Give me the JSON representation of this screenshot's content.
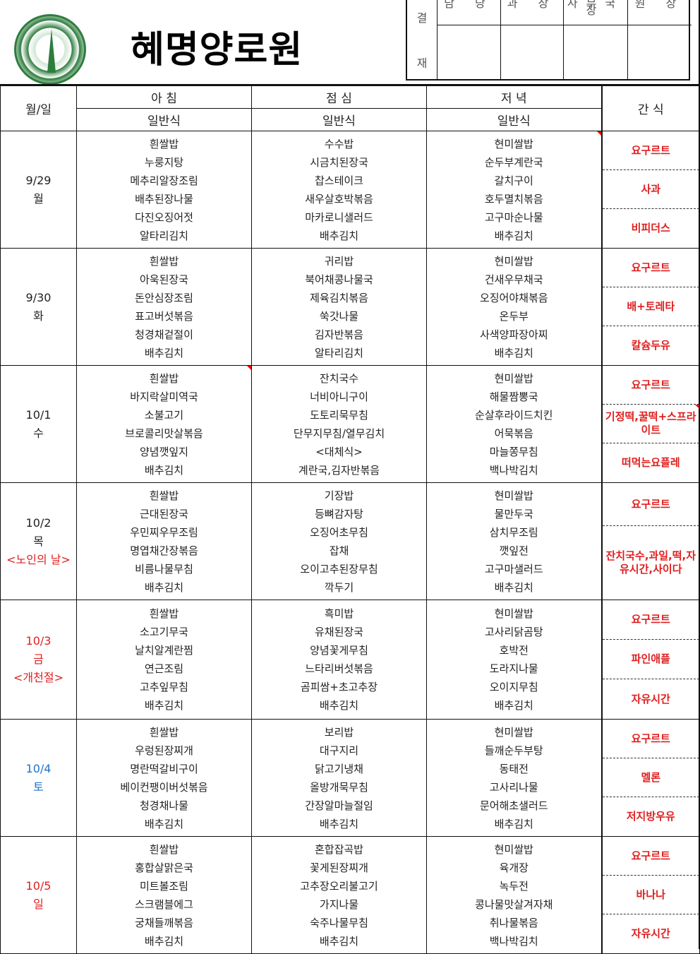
{
  "header": {
    "org_name": "혜명양로원",
    "logo": "hyemyeong-emblem",
    "approval": {
      "label_top": "결",
      "label_bottom": "재",
      "roles": [
        "담 당",
        "과 장",
        "사무국장",
        "원 장"
      ]
    }
  },
  "table": {
    "date_header": "월/일",
    "breakfast": "아 침",
    "lunch": "점 심",
    "dinner": "저 녁",
    "snack": "간 식",
    "general": "일반식"
  },
  "colors": {
    "holiday": "#e02020",
    "saturday": "#1f73c8",
    "snack": "#e02020"
  },
  "days": [
    {
      "date": "9/29",
      "weekday": "월",
      "note": "",
      "color": "normal",
      "breakfast": [
        "흰쌀밥",
        "누룽지탕",
        "메추리알장조림",
        "배추된장나물",
        "다진오징어젓",
        "알타리김치"
      ],
      "lunch": [
        "수수밥",
        "시금치된장국",
        "찹스테이크",
        "새우살호박볶음",
        "마카로니샐러드",
        "배추김치"
      ],
      "dinner": [
        "현미쌀밥",
        "순두부계란국",
        "갈치구이",
        "호두멸치볶음",
        "고구마순나물",
        "배추김치"
      ],
      "snacks": [
        "요구르트",
        "사과",
        "비피더스"
      ]
    },
    {
      "date": "9/30",
      "weekday": "화",
      "note": "",
      "color": "normal",
      "breakfast": [
        "흰쌀밥",
        "아욱된장국",
        "돈안심장조림",
        "표고버섯볶음",
        "청경채겉절이",
        "배추김치"
      ],
      "lunch": [
        "귀리밥",
        "북어채콩나물국",
        "제육김치볶음",
        "쑥갓나물",
        "김자반볶음",
        "알타리김치"
      ],
      "dinner": [
        "현미쌀밥",
        "건새우무채국",
        "오징어야채볶음",
        "온두부",
        "사색양파장아찌",
        "배추김치"
      ],
      "snacks": [
        "요구르트",
        "배+토레타",
        "칼슘두유"
      ]
    },
    {
      "date": "10/1",
      "weekday": "수",
      "note": "",
      "color": "normal",
      "breakfast": [
        "흰쌀밥",
        "바지락살미역국",
        "소불고기",
        "브로콜리맛살볶음",
        "양념깻잎지",
        "배추김치"
      ],
      "lunch": [
        "잔치국수",
        "너비아니구이",
        "도토리묵무침",
        "단무지무침/열무김치",
        "<대체식>",
        "계란국,김자반볶음"
      ],
      "dinner": [
        "현미쌀밥",
        "해물짬뽕국",
        "순살후라이드치킨",
        "어묵볶음",
        "마늘쫑무침",
        "백나박김치"
      ],
      "snacks": [
        "요구르트",
        "기정떡,꿀떡+스프라이트",
        "떠먹는요플레"
      ]
    },
    {
      "date": "10/2",
      "weekday": "목",
      "note": "<노인의 날>",
      "color": "normal",
      "breakfast": [
        "흰쌀밥",
        "근대된장국",
        "우민찌우무조림",
        "명엽채간장볶음",
        "비름나물무침",
        "배추김치"
      ],
      "lunch": [
        "기장밥",
        "등뼈감자탕",
        "오징어초무침",
        "잡채",
        "오이고추된장무침",
        "깍두기"
      ],
      "dinner": [
        "현미쌀밥",
        "물만두국",
        "삼치무조림",
        "깻잎전",
        "고구마샐러드",
        "배추김치"
      ],
      "snacks": [
        "요구르트",
        "잔치국수,과일,떡,자유시간,사이다"
      ]
    },
    {
      "date": "10/3",
      "weekday": "금",
      "note": "<개천절>",
      "color": "holiday",
      "breakfast": [
        "흰쌀밥",
        "소고기무국",
        "날치알계란찜",
        "연근조림",
        "고추잎무침",
        "배추김치"
      ],
      "lunch": [
        "흑미밥",
        "유채된장국",
        "양념꽃게무침",
        "느타리버섯볶음",
        "곰피쌈+초고추장",
        "배추김치"
      ],
      "dinner": [
        "현미쌀밥",
        "고사리닭곰탕",
        "호박전",
        "도라지나물",
        "오이지무침",
        "배추김치"
      ],
      "snacks": [
        "요구르트",
        "파인애플",
        "자유시간"
      ]
    },
    {
      "date": "10/4",
      "weekday": "토",
      "note": "",
      "color": "saturday",
      "breakfast": [
        "흰쌀밥",
        "우렁된장찌개",
        "명란떡갈비구이",
        "베이컨팽이버섯볶음",
        "청경채나물",
        "배추김치"
      ],
      "lunch": [
        "보리밥",
        "대구지리",
        "닭고기냉채",
        "올방개묵무침",
        "간장알마늘절임",
        "배추김치"
      ],
      "dinner": [
        "현미쌀밥",
        "들깨순두부탕",
        "동태전",
        "고사리나물",
        "문어해초샐러드",
        "배추김치"
      ],
      "snacks": [
        "요구르트",
        "멜론",
        "저지방우유"
      ]
    },
    {
      "date": "10/5",
      "weekday": "일",
      "note": "",
      "color": "holiday",
      "breakfast": [
        "흰쌀밥",
        "홍합살맑은국",
        "미트볼조림",
        "스크램블에그",
        "궁채들깨볶음",
        "배추김치"
      ],
      "lunch": [
        "혼합잡곡밥",
        "꽃게된장찌개",
        "고추장오리불고기",
        "가지나물",
        "숙주나물무침",
        "배추김치"
      ],
      "dinner": [
        "현미쌀밥",
        "육개장",
        "녹두전",
        "콩나물맛살겨자채",
        "취나물볶음",
        "백나박김치"
      ],
      "snacks": [
        "요구르트",
        "바나나",
        "자유시간"
      ]
    }
  ]
}
